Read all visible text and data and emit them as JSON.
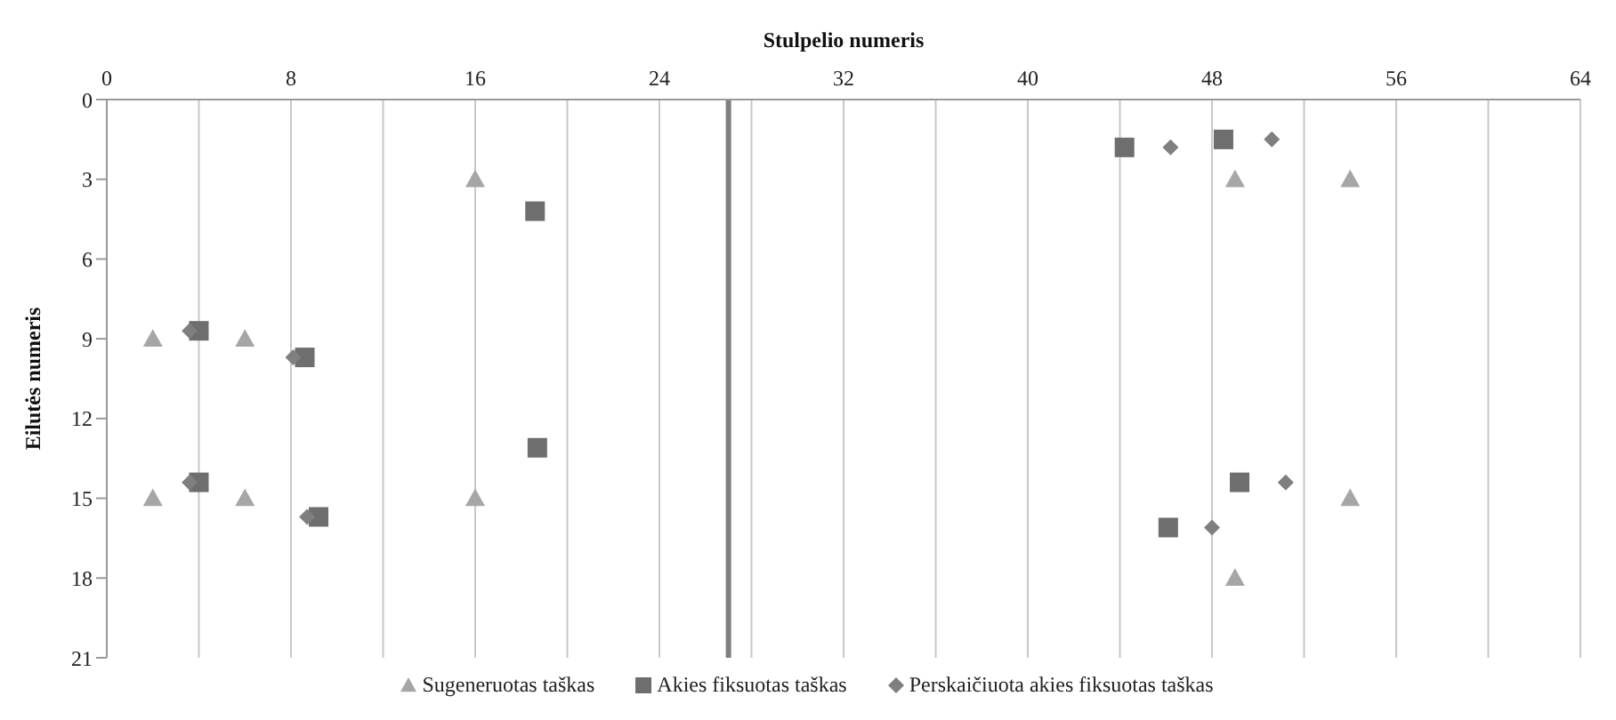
{
  "chart_data": {
    "type": "scatter",
    "xlabel": "Stulpelio numeris",
    "ylabel": "Eilutės numeris",
    "xlim": [
      0,
      64
    ],
    "xticks": [
      0,
      {
        "value": 4,
        "label": null
      },
      8,
      {
        "value": 12,
        "label": null
      },
      16,
      {
        "value": 20,
        "label": null
      },
      24,
      {
        "value": 28,
        "label": null
      },
      32,
      {
        "value": 36,
        "label": null
      },
      40,
      {
        "value": 44,
        "label": null
      },
      48,
      {
        "value": 52,
        "label": null
      },
      56,
      {
        "value": 60,
        "label": null
      },
      64
    ],
    "ylim": [
      21,
      0
    ],
    "yticks": [
      0,
      3,
      6,
      9,
      12,
      15,
      18,
      21
    ],
    "grid": "x",
    "legend": "bottom",
    "ref_lines": [
      {
        "axis": "x",
        "value": 27,
        "color": "#7f7f7f"
      }
    ],
    "series": [
      {
        "name": "Sugeneruotas taškas",
        "color": "#a6a6a6",
        "marker": "triangle",
        "x": [
          16,
          49,
          54,
          2,
          6,
          2,
          6,
          16,
          54,
          49
        ],
        "values": [
          3,
          3,
          3,
          9,
          9,
          15,
          15,
          15,
          15,
          18
        ]
      },
      {
        "name": "Akies fiksuotas taškas",
        "color": "#6e6e6e",
        "marker": "square",
        "x": [
          18.6,
          4,
          8.6,
          18.7,
          4,
          9.2,
          44.2,
          48.5,
          49.2,
          46.1
        ],
        "values": [
          4.2,
          8.7,
          9.7,
          13.1,
          14.4,
          15.7,
          1.8,
          1.5,
          14.4,
          16.1
        ]
      },
      {
        "name": "Perskaičiuota akies fiksuotas taškas",
        "color": "#7f7f7f",
        "marker": "diamond",
        "x": [
          3.6,
          8.1,
          3.6,
          8.7,
          46.2,
          50.6,
          51.2,
          48
        ],
        "values": [
          8.7,
          9.7,
          14.4,
          15.7,
          1.8,
          1.5,
          14.4,
          16.1
        ]
      }
    ]
  }
}
